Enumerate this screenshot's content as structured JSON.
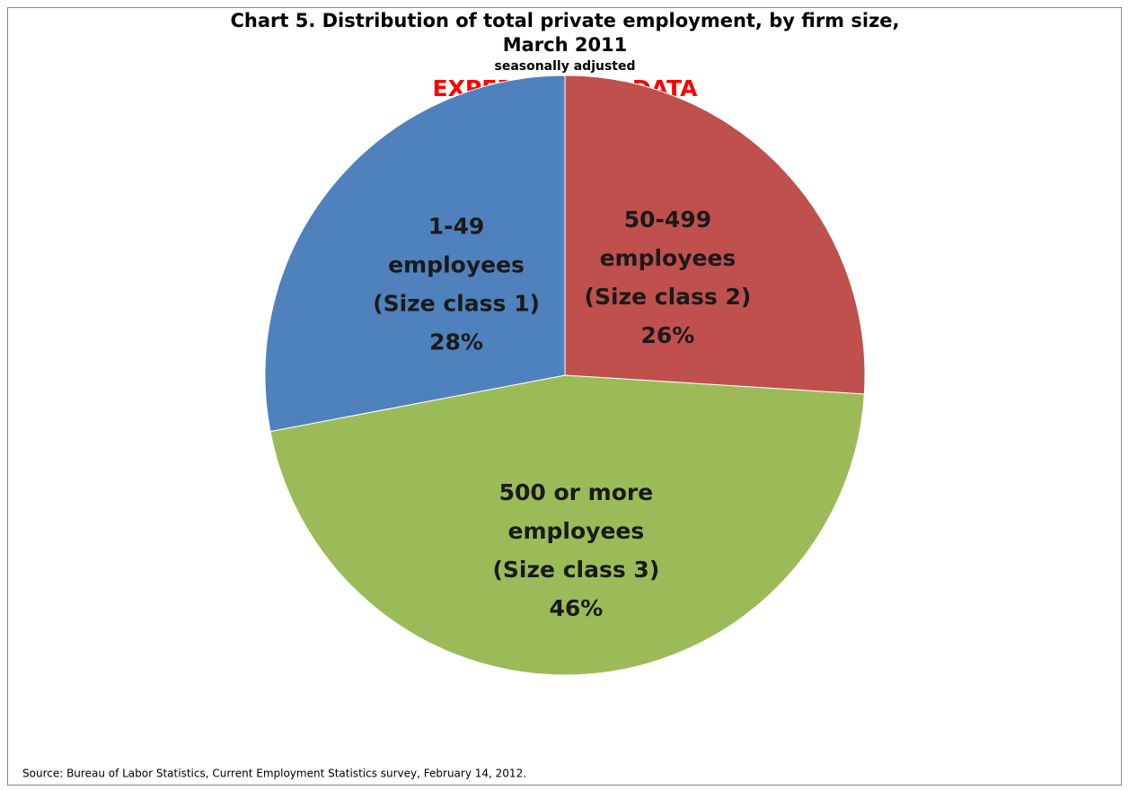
{
  "chart_data": {
    "type": "pie",
    "title": [
      "Chart 5.  Distribution of total private employment, by firm size,",
      "March 2011"
    ],
    "subtitle": "seasonally adjusted",
    "annotation": "EXPERIMENTAL DATA",
    "source": "Source: Bureau of Labor Statistics, Current Employment Statistics survey, February 14, 2012.",
    "categories": [
      "50-499 employees (Size class 2)",
      "500 or more employees (Size class 3)",
      "1-49 employees (Size class 1)"
    ],
    "values": [
      26,
      46,
      28
    ],
    "value_labels": [
      "26%",
      "46%",
      "28%"
    ],
    "colors": [
      "#c0504d",
      "#9bbb59",
      "#4f81bd"
    ]
  }
}
